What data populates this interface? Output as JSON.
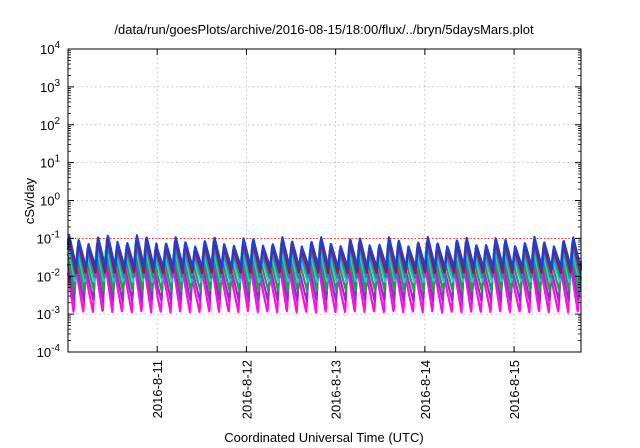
{
  "chart_data": {
    "type": "line",
    "title": "/data/run/goesPlots/archive/2016-08-15/18:00/flux/../bryn/5daysMars.plot",
    "xlabel": "Coordinated Universal Time (UTC)",
    "ylabel": "cSv/day",
    "yscale": "log",
    "ylim": [
      0.0001,
      10000
    ],
    "xlim_days": [
      0.0,
      5.75
    ],
    "grid": true,
    "ytick_exponents": [
      "4",
      "3",
      "2",
      "1",
      "0",
      "-1",
      "-2",
      "-3",
      "-4"
    ],
    "ytick_values": [
      10000,
      1000,
      100,
      10,
      1,
      0.1,
      0.01,
      0.001,
      0.0001
    ],
    "xtick_labels": [
      "2016-8-11",
      "2016-8-12",
      "2016-8-13",
      "2016-8-14",
      "2016-8-15"
    ],
    "xtick_days": [
      1.0,
      2.0,
      3.0,
      4.0,
      5.0
    ],
    "reference_line": {
      "value": 0.1,
      "color": "#ff0000"
    },
    "cycles_per_day": 9.2,
    "series": [
      {
        "name": "blue",
        "color": "#1a3fe0",
        "peak": 0.11,
        "trough": 0.016
      },
      {
        "name": "dark-red",
        "color": "#b01030",
        "peak": 0.095,
        "trough": 0.012
      },
      {
        "name": "teal",
        "color": "#1e8fa0",
        "peak": 0.08,
        "trough": 0.009
      },
      {
        "name": "cyan",
        "color": "#20c8d8",
        "peak": 0.06,
        "trough": 0.007
      },
      {
        "name": "green",
        "color": "#2a9a4a",
        "peak": 0.045,
        "trough": 0.004
      },
      {
        "name": "purple",
        "color": "#9a2ad0",
        "peak": 0.03,
        "trough": 0.0022
      },
      {
        "name": "magenta",
        "color": "#ff10e0",
        "peak": 0.022,
        "trough": 0.0011
      }
    ]
  }
}
